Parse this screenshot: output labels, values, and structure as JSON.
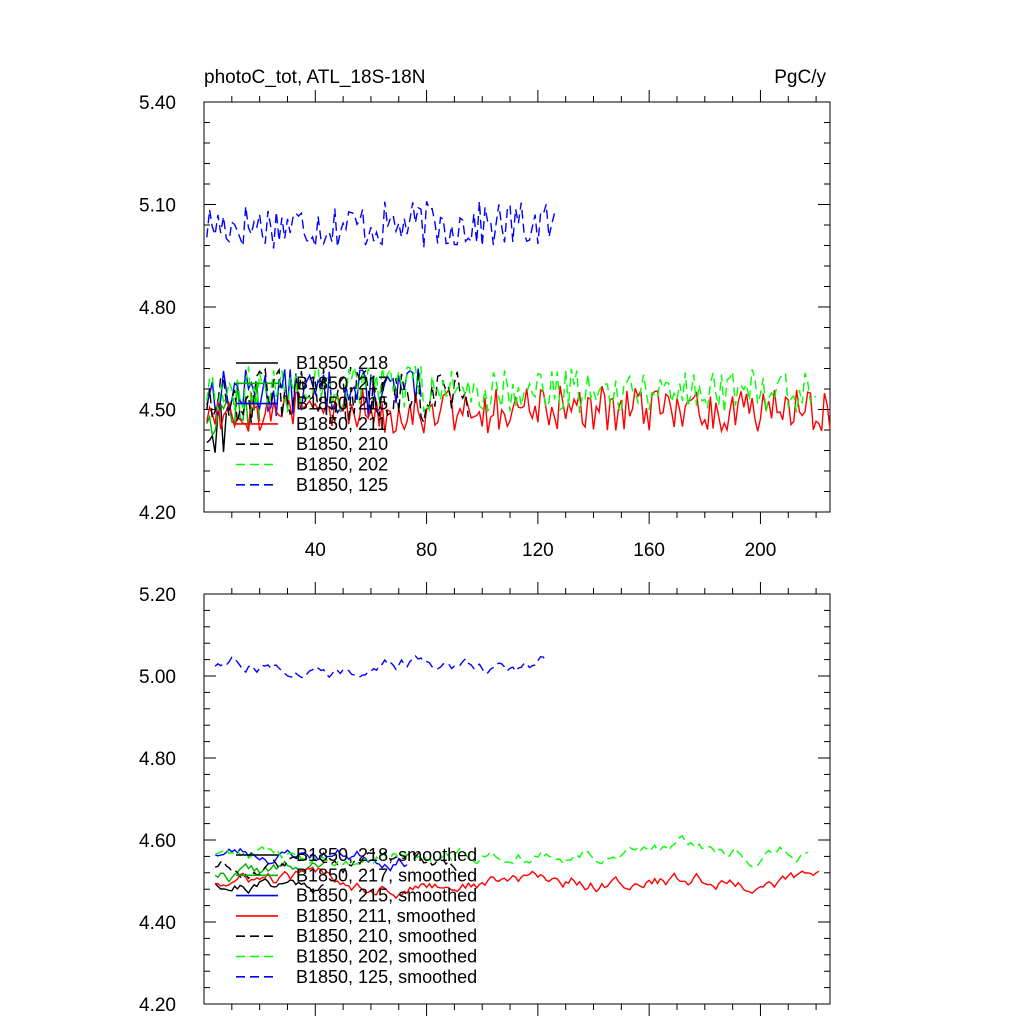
{
  "chart_data": [
    {
      "type": "line",
      "title": "photoC_tot, ATL_18S-18N",
      "units": "PgC/y",
      "xlim": [
        0,
        225
      ],
      "ylim": [
        4.2,
        5.4
      ],
      "xticks": [
        "40",
        "80",
        "120",
        "160",
        "200"
      ],
      "yticks": [
        "4.20",
        "4.50",
        "4.80",
        "5.10",
        "5.40"
      ],
      "series": [
        {
          "name": "B1850, 218",
          "color": "#000000",
          "dash": "solid",
          "x0": 1,
          "length": 8,
          "base": 4.45,
          "noise": 0.09,
          "seed": 11
        },
        {
          "name": "B1850, 217",
          "color": "#00b000",
          "dash": "solid",
          "x0": 1,
          "length": 20,
          "base": 4.5,
          "noise": 0.08,
          "seed": 12
        },
        {
          "name": "B1850, 215",
          "color": "#0000ff",
          "dash": "solid",
          "x0": 1,
          "length": 78,
          "base": 4.55,
          "noise": 0.07,
          "seed": 13
        },
        {
          "name": "B1850, 211",
          "color": "#ff0000",
          "dash": "solid",
          "x0": 1,
          "length": 225,
          "base": 4.5,
          "noise": 0.07,
          "seed": 14
        },
        {
          "name": "B1850, 210",
          "color": "#000000",
          "dash": "dashed",
          "x0": 1,
          "length": 95,
          "base": 4.54,
          "noise": 0.08,
          "seed": 15
        },
        {
          "name": "B1850, 202",
          "color": "#00ff00",
          "dash": "dashed",
          "x0": 1,
          "length": 220,
          "base": 4.56,
          "noise": 0.07,
          "seed": 16
        },
        {
          "name": "B1850, 125",
          "color": "#0000ff",
          "dash": "dashed",
          "x0": 1,
          "length": 127,
          "base": 5.04,
          "noise": 0.07,
          "seed": 17
        }
      ]
    },
    {
      "type": "line",
      "title": "",
      "xlim": [
        0,
        225
      ],
      "ylim": [
        4.2,
        5.2
      ],
      "xticks": [],
      "yticks": [
        "4.20",
        "4.40",
        "4.60",
        "4.80",
        "5.00",
        "5.20"
      ],
      "series": [
        {
          "name": "B1850, 218, smoothed",
          "color": "#000000",
          "dash": "solid",
          "x0": 4,
          "length": 40,
          "base": 4.5,
          "noise": 0.02,
          "seed": 21
        },
        {
          "name": "B1850, 217, smoothed",
          "color": "#00b000",
          "dash": "solid",
          "x0": 4,
          "length": 40,
          "base": 4.52,
          "noise": 0.02,
          "seed": 22
        },
        {
          "name": "B1850, 215, smoothed",
          "color": "#0000ff",
          "dash": "solid",
          "x0": 4,
          "length": 70,
          "base": 4.57,
          "noise": 0.02,
          "seed": 23
        },
        {
          "name": "B1850, 211, smoothed",
          "color": "#ff0000",
          "dash": "solid",
          "x0": 4,
          "length": 218,
          "base": 4.5,
          "noise": 0.02,
          "seed": 24
        },
        {
          "name": "B1850, 210, smoothed",
          "color": "#000000",
          "dash": "dashed",
          "x0": 4,
          "length": 88,
          "base": 4.54,
          "noise": 0.02,
          "seed": 25
        },
        {
          "name": "B1850, 202, smoothed",
          "color": "#00ff00",
          "dash": "dashed",
          "x0": 4,
          "length": 214,
          "base": 4.57,
          "noise": 0.02,
          "seed": 26
        },
        {
          "name": "B1850, 125, smoothed",
          "color": "#0000ff",
          "dash": "dashed",
          "x0": 4,
          "length": 120,
          "base": 5.03,
          "noise": 0.02,
          "seed": 27
        }
      ]
    }
  ]
}
